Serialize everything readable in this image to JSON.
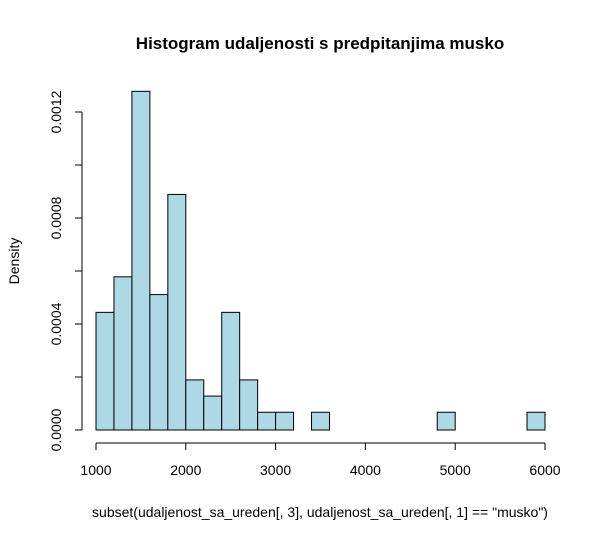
{
  "chart_data": {
    "type": "histogram",
    "title": "Histogram udaljenosti s predpitanjima musko",
    "xlabel": "subset(udaljenost_sa_ureden[, 3], udaljenost_sa_ureden[, 1] == \"musko\")",
    "ylabel": "Density",
    "xlim": [
      1000,
      6000
    ],
    "ylim": [
      0,
      0.0012
    ],
    "x_ticks": [
      1000,
      2000,
      3000,
      4000,
      5000,
      6000
    ],
    "y_ticks": [
      "0.0000",
      "0.0004",
      "0.0008",
      "0.0012"
    ],
    "y_tick_values": [
      0,
      0.0004,
      0.0008,
      0.0012
    ],
    "bin_width": 200,
    "bins": [
      {
        "x0": 1000,
        "x1": 1200,
        "density": 0.000444
      },
      {
        "x0": 1200,
        "x1": 1400,
        "density": 0.000578
      },
      {
        "x0": 1400,
        "x1": 1600,
        "density": 0.001278
      },
      {
        "x0": 1600,
        "x1": 1800,
        "density": 0.000511
      },
      {
        "x0": 1800,
        "x1": 2000,
        "density": 0.000889
      },
      {
        "x0": 2000,
        "x1": 2200,
        "density": 0.000189
      },
      {
        "x0": 2200,
        "x1": 2400,
        "density": 0.000128
      },
      {
        "x0": 2400,
        "x1": 2600,
        "density": 0.000444
      },
      {
        "x0": 2600,
        "x1": 2800,
        "density": 0.000189
      },
      {
        "x0": 2800,
        "x1": 3000,
        "density": 6.7e-05
      },
      {
        "x0": 3000,
        "x1": 3200,
        "density": 6.7e-05
      },
      {
        "x0": 3200,
        "x1": 3400,
        "density": 0
      },
      {
        "x0": 3400,
        "x1": 3600,
        "density": 6.7e-05
      },
      {
        "x0": 3600,
        "x1": 3800,
        "density": 0
      },
      {
        "x0": 3800,
        "x1": 4000,
        "density": 0
      },
      {
        "x0": 4000,
        "x1": 4200,
        "density": 0
      },
      {
        "x0": 4200,
        "x1": 4400,
        "density": 0
      },
      {
        "x0": 4400,
        "x1": 4600,
        "density": 0
      },
      {
        "x0": 4600,
        "x1": 4800,
        "density": 0
      },
      {
        "x0": 4800,
        "x1": 5000,
        "density": 6.7e-05
      },
      {
        "x0": 5000,
        "x1": 5200,
        "density": 0
      },
      {
        "x0": 5200,
        "x1": 5400,
        "density": 0
      },
      {
        "x0": 5400,
        "x1": 5600,
        "density": 0
      },
      {
        "x0": 5600,
        "x1": 5800,
        "density": 0
      },
      {
        "x0": 5800,
        "x1": 6000,
        "density": 6.7e-05
      }
    ],
    "bar_color": "#add8e6",
    "bar_stroke": "#000000",
    "grid": false,
    "legend": "none"
  }
}
